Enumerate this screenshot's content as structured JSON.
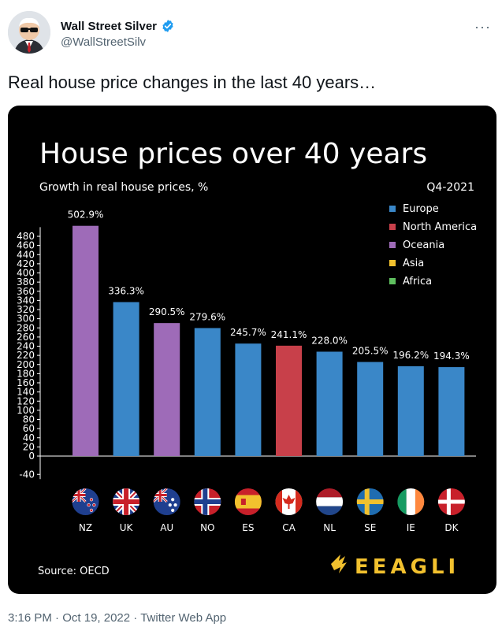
{
  "tweet": {
    "author_name": "Wall Street Silver",
    "author_handle": "@WallStreetSilv",
    "text": "Real house price changes in the last 40 years…",
    "time": "3:16 PM",
    "sep1": " · ",
    "date": "Oct 19, 2022",
    "sep2": " · ",
    "source": "Twitter Web App",
    "more_icon": "more-horizontal-icon",
    "verified_icon": "verified-badge-icon",
    "verified_color": "#1d9bf0"
  },
  "chart_data": {
    "type": "bar",
    "title": "House prices over 40 years",
    "subtitle": "Growth in real house prices, %",
    "period": "Q4-2021",
    "source": "Source: OECD",
    "logo_text": "EEAGLI",
    "categories": [
      "NZ",
      "UK",
      "AU",
      "NO",
      "ES",
      "CA",
      "NL",
      "SE",
      "IE",
      "DK"
    ],
    "values": [
      502.9,
      336.3,
      290.5,
      279.6,
      245.7,
      241.1,
      228.0,
      205.5,
      196.2,
      194.3
    ],
    "value_labels": [
      "502.9%",
      "336.3%",
      "290.5%",
      "279.6%",
      "245.7%",
      "241.1%",
      "228.0%",
      "205.5%",
      "196.2%",
      "194.3%"
    ],
    "regions": [
      "Oceania",
      "Europe",
      "Oceania",
      "Europe",
      "Europe",
      "North America",
      "Europe",
      "Europe",
      "Europe",
      "Europe"
    ],
    "legend": [
      {
        "name": "Europe",
        "color": "#3a87c8"
      },
      {
        "name": "North America",
        "color": "#c8404a"
      },
      {
        "name": "Oceania",
        "color": "#9e6bb8"
      },
      {
        "name": "Asia",
        "color": "#f2c12e"
      },
      {
        "name": "Africa",
        "color": "#5fbf5f"
      }
    ],
    "legend_position": "top-right",
    "yticks": [
      -40,
      0,
      20,
      40,
      60,
      80,
      100,
      120,
      140,
      160,
      180,
      200,
      220,
      240,
      260,
      280,
      300,
      320,
      340,
      360,
      380,
      400,
      420,
      440,
      460,
      480
    ],
    "ylim": [
      -40,
      500
    ],
    "grid": false
  }
}
